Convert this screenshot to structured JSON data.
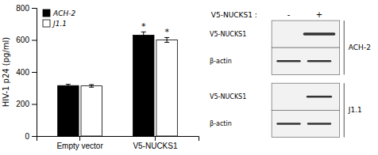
{
  "chart_data": {
    "type": "bar",
    "categories": [
      "Empty vector",
      "V5-NUCKS1"
    ],
    "series": [
      {
        "name": "ACH-2",
        "color": "#000000",
        "values": [
          315,
          630
        ],
        "errors": [
          8,
          20
        ]
      },
      {
        "name": "J1.1",
        "color": "#ffffff",
        "values": [
          313,
          600
        ],
        "errors": [
          8,
          15
        ]
      }
    ],
    "ylim": [
      0,
      800
    ],
    "yticks": [
      0,
      200,
      400,
      600,
      800
    ],
    "ylabel": "HIV-1 p24 (pg/ml)",
    "legend": "upper left",
    "annotations": [
      "*",
      "*",
      "V5-NUCKS1 :",
      "-",
      "+",
      "V5-NUCKS1",
      "β-actin",
      "ACH-2",
      "V5-NUCKS1",
      "β-actin",
      "J1.1"
    ]
  }
}
